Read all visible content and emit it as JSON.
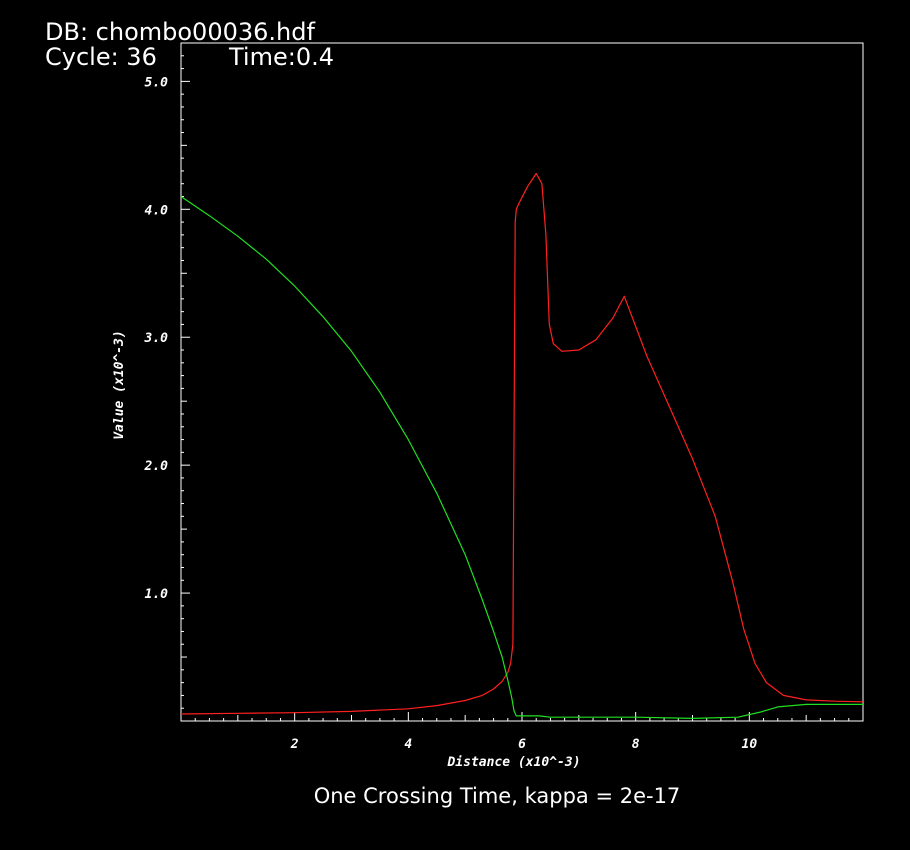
{
  "header": {
    "db_line": "DB: chombo00036.hdf",
    "cycle_line": "Cycle: 36",
    "time_line": "Time:0.4"
  },
  "chart_data": {
    "type": "line",
    "title": "One Crossing Time, kappa = 2e-17",
    "xlabel": "Distance (x10^-3)",
    "ylabel": "Value (x10^-3)",
    "xlim": [
      0,
      12
    ],
    "ylim": [
      0,
      5.3
    ],
    "xticks": [
      2,
      4,
      6,
      8,
      10
    ],
    "xtick_labels": [
      "2",
      "4",
      "6",
      "8",
      "10"
    ],
    "yticks": [
      1,
      2,
      3,
      4,
      5
    ],
    "ytick_labels": [
      "1.0",
      "2.0",
      "3.0",
      "4.0",
      "5.0"
    ],
    "grid": false,
    "legend": "none",
    "series": [
      {
        "color": "#ff2020",
        "x": [
          0,
          1,
          2,
          3,
          4,
          4.5,
          5,
          5.3,
          5.5,
          5.65,
          5.75,
          5.8,
          5.84,
          5.86,
          5.88,
          5.9,
          5.95,
          6.1,
          6.25,
          6.35,
          6.42,
          6.48,
          6.55,
          6.7,
          7.0,
          7.3,
          7.6,
          7.8,
          8.2,
          8.6,
          9.0,
          9.4,
          9.7,
          9.9,
          10.1,
          10.3,
          10.6,
          11,
          11.5,
          12
        ],
        "y": [
          0.055,
          0.06,
          0.065,
          0.075,
          0.095,
          0.12,
          0.16,
          0.2,
          0.25,
          0.31,
          0.38,
          0.45,
          0.6,
          2.2,
          3.9,
          4.0,
          4.05,
          4.18,
          4.28,
          4.2,
          3.8,
          3.1,
          2.95,
          2.89,
          2.9,
          2.98,
          3.15,
          3.32,
          2.85,
          2.45,
          2.05,
          1.6,
          1.1,
          0.72,
          0.45,
          0.3,
          0.2,
          0.165,
          0.155,
          0.15
        ]
      },
      {
        "color": "#20e020",
        "x": [
          0,
          0.5,
          1,
          1.5,
          2,
          2.5,
          3,
          3.5,
          4,
          4.5,
          5,
          5.3,
          5.5,
          5.65,
          5.75,
          5.82,
          5.86,
          5.9,
          6.0,
          6.3,
          6.5,
          7,
          8,
          9,
          9.8,
          10.2,
          10.5,
          11,
          11.5,
          12
        ],
        "y": [
          4.1,
          3.95,
          3.79,
          3.61,
          3.4,
          3.16,
          2.89,
          2.57,
          2.2,
          1.78,
          1.3,
          0.95,
          0.7,
          0.5,
          0.32,
          0.18,
          0.08,
          0.04,
          0.04,
          0.04,
          0.03,
          0.03,
          0.03,
          0.02,
          0.03,
          0.07,
          0.11,
          0.13,
          0.13,
          0.13
        ]
      }
    ]
  }
}
